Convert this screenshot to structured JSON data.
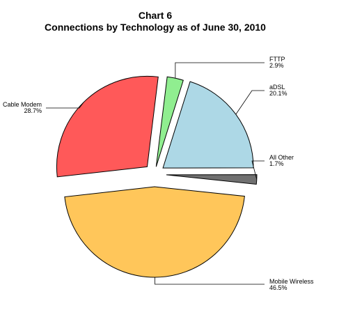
{
  "chart_data": {
    "type": "pie",
    "title": "Chart 6",
    "subtitle": "Connections by Technology as of June 30, 2010",
    "slices": [
      {
        "name": "FTTP",
        "value": 2.9,
        "value_label": "2.9%",
        "color": "#90ee90"
      },
      {
        "name": "aDSL",
        "value": 20.1,
        "value_label": "20.1%",
        "color": "#add8e6"
      },
      {
        "name": "All Other",
        "value": 1.7,
        "value_label": "1.7%",
        "color": "#707070"
      },
      {
        "name": "Mobile Wireless",
        "value": 46.5,
        "value_label": "46.5%",
        "color": "#ffc65a"
      },
      {
        "name": "Cable Modem",
        "value": 28.7,
        "value_label": "28.7%",
        "color": "#ff5959"
      }
    ],
    "legend": "none",
    "exploded": true
  }
}
